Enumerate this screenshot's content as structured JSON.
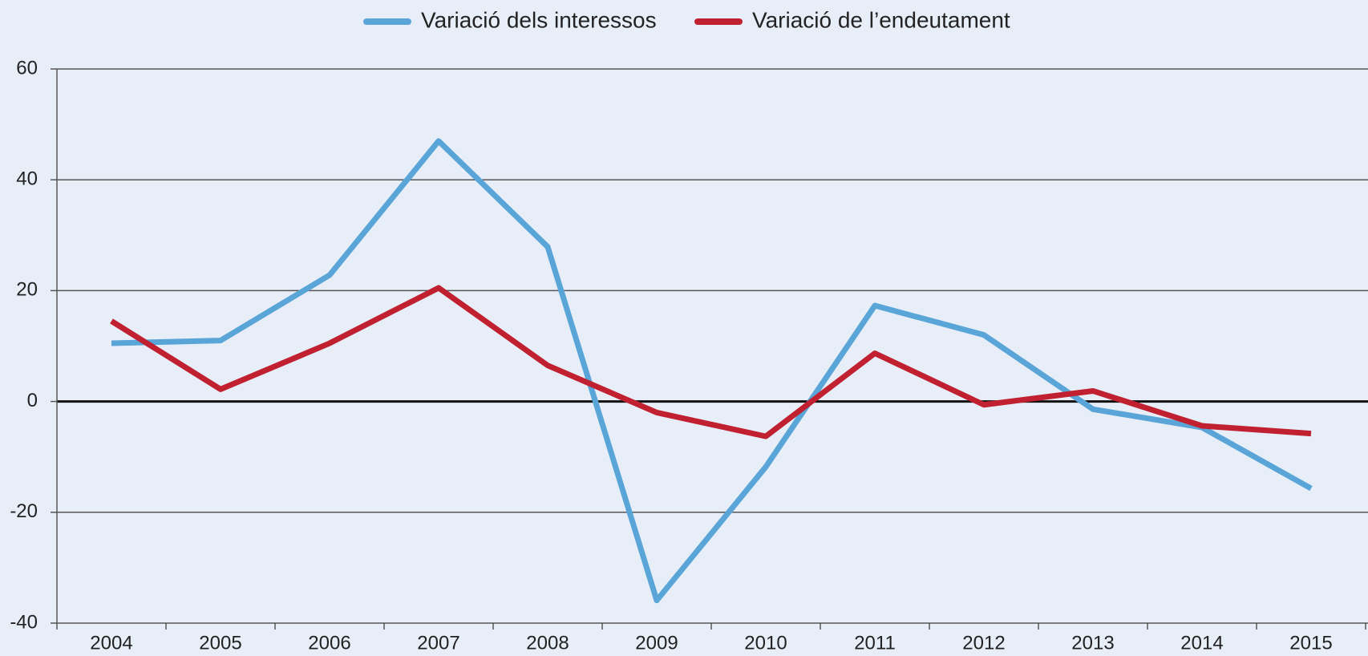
{
  "chart_data": {
    "type": "line",
    "categories": [
      "2004",
      "2005",
      "2006",
      "2007",
      "2008",
      "2009",
      "2010",
      "2011",
      "2012",
      "2013",
      "2014",
      "2015"
    ],
    "series": [
      {
        "name": "Variació dels interessos",
        "color": "#5aa5d8",
        "values": [
          10.5,
          11,
          22.8,
          47,
          27.9,
          -35.9,
          -11.8,
          17.3,
          12,
          -1.4,
          -4.7,
          -15.7
        ]
      },
      {
        "name": "Variació de l’endeutament",
        "color": "#c0202f",
        "values": [
          14.5,
          2.2,
          10.5,
          20.5,
          6.5,
          -2,
          -6.3,
          8.7,
          -0.6,
          1.9,
          -4.4,
          -5.8
        ]
      }
    ],
    "ylim": [
      -40,
      60
    ],
    "yticks": [
      -40,
      -20,
      0,
      20,
      40,
      60
    ],
    "grid": true,
    "legend": "top"
  }
}
